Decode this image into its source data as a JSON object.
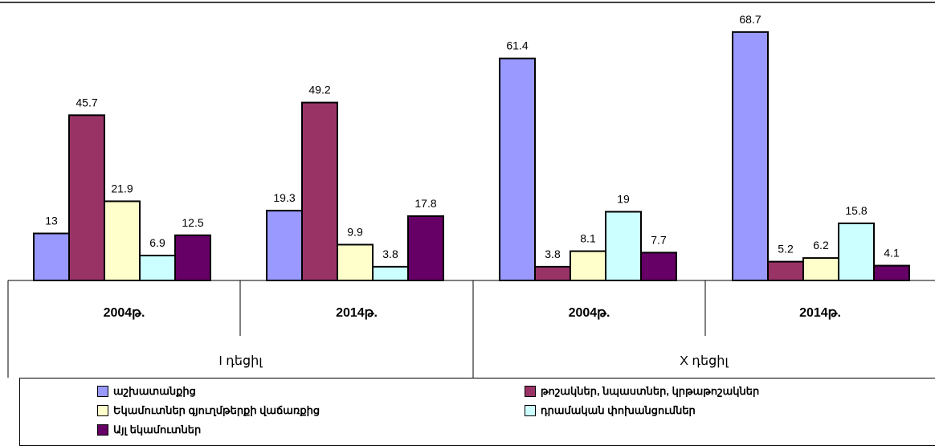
{
  "header": {
    "right_text": ""
  },
  "chart_data": {
    "type": "bar",
    "categories": [
      "2004թ.",
      "2014թ.",
      "2004թ.",
      "2014թ."
    ],
    "groups": [
      {
        "label": "I դեցիլ",
        "categories": [
          "2004թ.",
          "2014թ."
        ]
      },
      {
        "label": "X դեցիլ",
        "categories": [
          "2004թ.",
          "2014թ."
        ]
      }
    ],
    "series": [
      {
        "name": "աշխատանքից",
        "color": "#9999FF",
        "values": [
          13,
          19.3,
          61.4,
          68.7
        ]
      },
      {
        "name": "թոշակներ, նպաստներ, կրթաթոշակներ",
        "color": "#993366",
        "values": [
          45.7,
          49.2,
          3.8,
          5.2
        ]
      },
      {
        "name": "Եկամուտներ գյուղմթերքի վաճառքից",
        "color": "#FFFFCC",
        "values": [
          21.9,
          9.9,
          8.1,
          6.2
        ]
      },
      {
        "name": "դրամական փոխանցումներ",
        "color": "#CCFFFF",
        "values": [
          6.9,
          3.8,
          19,
          15.8
        ]
      },
      {
        "name": "Այլ եկամուտներ",
        "color": "#660066",
        "values": [
          12.5,
          17.8,
          7.7,
          4.1
        ]
      }
    ],
    "ylim": [
      0,
      75
    ],
    "title": "",
    "xlabel": "",
    "ylabel": ""
  }
}
